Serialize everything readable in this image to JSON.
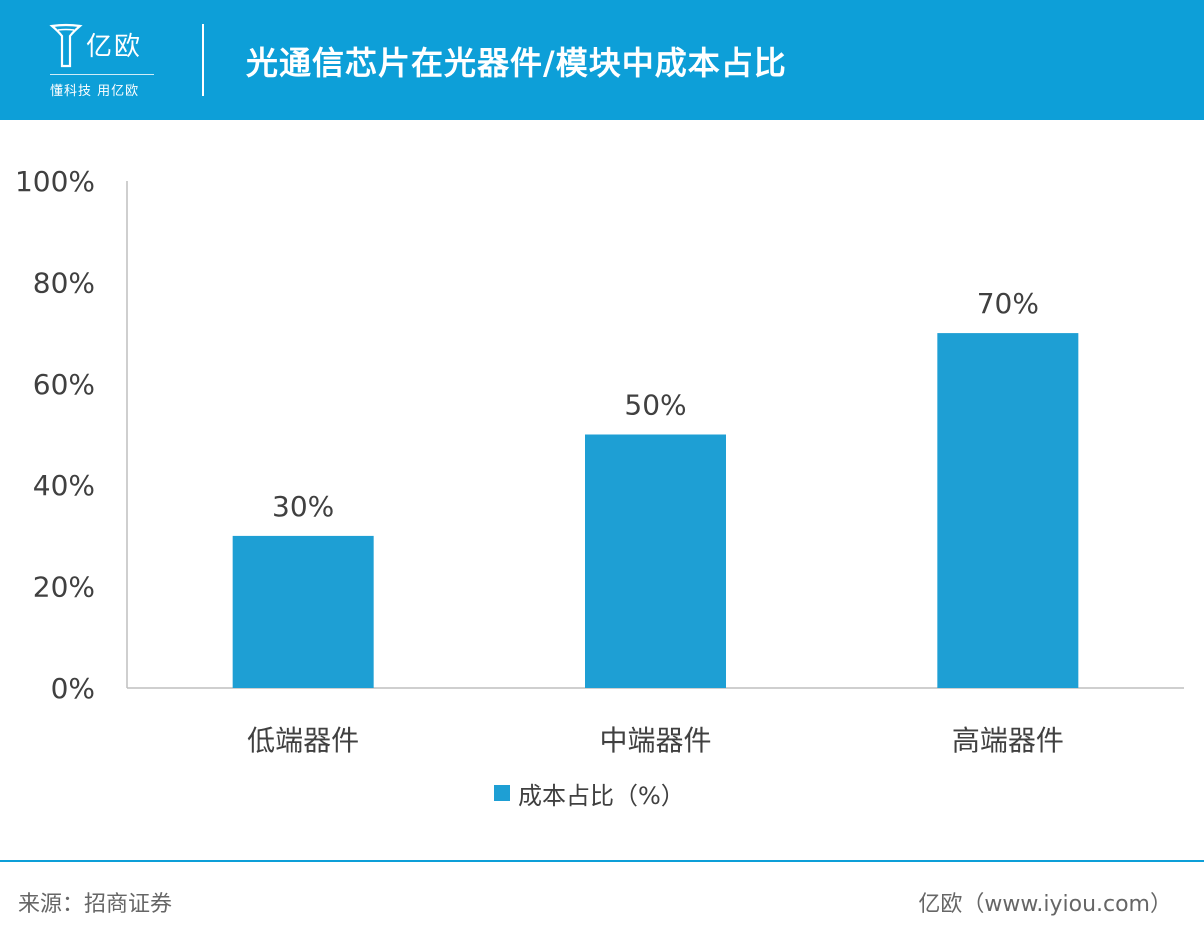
{
  "header": {
    "logo_name": "亿欧",
    "logo_slogan": "懂科技 用亿欧",
    "title": "光通信芯片在光器件/模块中成本占比"
  },
  "chart_data": {
    "type": "bar",
    "categories": [
      "低端器件",
      "中端器件",
      "高端器件"
    ],
    "series": [
      {
        "name": "成本占比（%）",
        "values": [
          30,
          50,
          70
        ]
      }
    ],
    "data_labels": [
      "30%",
      "50%",
      "70%"
    ],
    "y_ticks": [
      "0%",
      "20%",
      "40%",
      "60%",
      "80%",
      "100%"
    ],
    "ylim": [
      0,
      100
    ],
    "title": "",
    "xlabel": "",
    "ylabel": "",
    "grid": false,
    "legend_position": "bottom",
    "bar_color": "#1e9fd4"
  },
  "footer": {
    "source": "来源：招商证券",
    "credit": "亿欧（www.iyiou.com）"
  },
  "colors": {
    "header_bg": "#0d9fd8",
    "bar": "#1e9fd4"
  }
}
